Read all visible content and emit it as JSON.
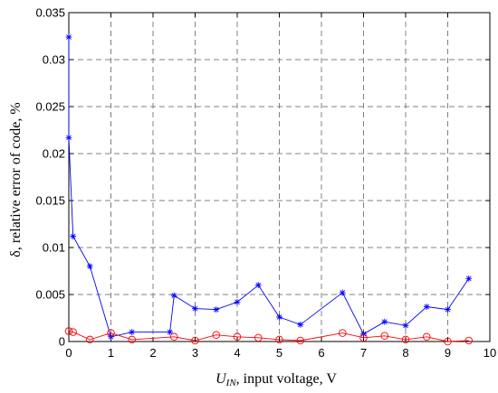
{
  "chart_data": {
    "type": "line",
    "title": "",
    "xlabel": {
      "prefix": "U",
      "subscript": "IN",
      "text": ", input voltage, V"
    },
    "ylabel": "δ, relative error of code, %",
    "xlim": [
      0,
      10
    ],
    "ylim": [
      0,
      0.035
    ],
    "x_ticks": [
      "0",
      "1",
      "2",
      "3",
      "4",
      "5",
      "6",
      "7",
      "8",
      "9",
      "10"
    ],
    "y_ticks": [
      "0",
      "0.005",
      "0.01",
      "0.015",
      "0.02",
      "0.025",
      "0.03",
      "0.035"
    ],
    "grid": true,
    "series": [
      {
        "color": "#0000ff",
        "marker": "asterisk",
        "x": [
          0,
          0,
          0.1,
          0.5,
          1.0,
          1.5,
          2.4,
          2.5,
          3.0,
          3.5,
          4.0,
          4.5,
          5.0,
          5.5,
          6.5,
          7.0,
          7.5,
          8.0,
          8.5,
          9.0,
          9.5
        ],
        "y": [
          0.0324,
          0.0217,
          0.0112,
          0.008,
          0.0005,
          0.001,
          0.001,
          0.0049,
          0.0035,
          0.0034,
          0.0042,
          0.006,
          0.0026,
          0.0018,
          0.0052,
          0.0008,
          0.0021,
          0.0017,
          0.0037,
          0.0034,
          0.0067
        ]
      },
      {
        "color": "#ff0000",
        "marker": "circle",
        "x": [
          0,
          0.1,
          0.5,
          1.0,
          1.5,
          2.5,
          3.0,
          3.5,
          4.0,
          4.5,
          5.0,
          5.5,
          6.5,
          7.0,
          7.5,
          8.0,
          8.5,
          9.0,
          9.5
        ],
        "y": [
          0.0011,
          0.001,
          0.0002,
          0.0009,
          0.0002,
          0.0005,
          0.0001,
          0.0007,
          0.0005,
          0.0004,
          0.0002,
          0.0001,
          0.0009,
          0.0004,
          0.0006,
          0.0002,
          0.0005,
          0.0,
          0.0001
        ]
      }
    ]
  }
}
